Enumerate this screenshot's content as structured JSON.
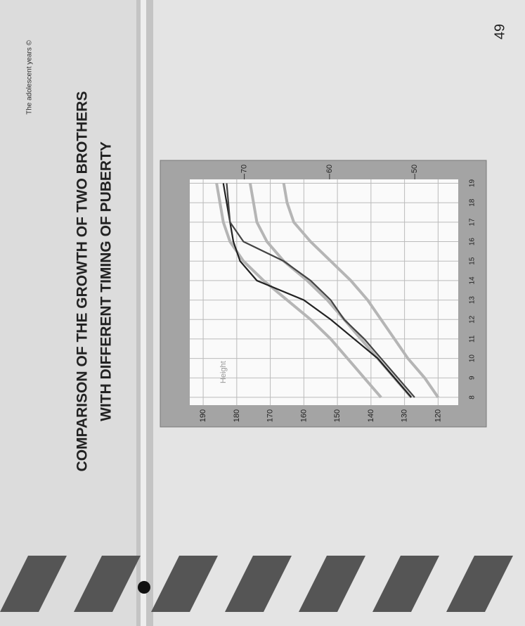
{
  "header": {
    "watermark": "The adolescent years ©",
    "page_number": "49"
  },
  "title": [
    "COMPARISON OF THE GROWTH OF TWO BROTHERS",
    "WITH DIFFERENT TIMING OF PUBERTY"
  ],
  "chart_data": {
    "type": "line",
    "annotation": "Height",
    "x": [
      8,
      9,
      10,
      11,
      12,
      13,
      14,
      15,
      16,
      17,
      18,
      19
    ],
    "xlim": [
      7.6,
      19.2
    ],
    "xticks": [
      8,
      9,
      10,
      11,
      12,
      13,
      14,
      15,
      16,
      17,
      18,
      19
    ],
    "ylim": [
      114,
      194
    ],
    "yticks": [
      120,
      130,
      140,
      150,
      160,
      170,
      180,
      190
    ],
    "y2lim": [
      44.9,
      76.4
    ],
    "y2ticks": [
      50,
      60,
      70
    ],
    "grid": true,
    "series": [
      {
        "color": "#b5b5b5",
        "values": [
          137,
          142,
          147,
          152,
          158,
          165,
          172,
          178,
          182,
          184,
          185,
          186
        ]
      },
      {
        "color": "#b5b5b5",
        "values": [
          128,
          133,
          138,
          143,
          148,
          153,
          159,
          166,
          171,
          174,
          175,
          176
        ]
      },
      {
        "color": "#b5b5b5",
        "values": [
          120,
          124,
          129,
          133,
          137,
          141,
          146,
          152,
          158,
          163,
          165,
          166
        ]
      },
      {
        "color": "#222222",
        "values": [
          128,
          133,
          138,
          145,
          152,
          160,
          174,
          179,
          181,
          182,
          183,
          184
        ]
      },
      {
        "color": "#444444",
        "values": [
          127,
          132,
          137,
          142,
          148,
          152,
          158,
          166,
          178,
          182,
          182.5,
          183
        ]
      }
    ]
  }
}
